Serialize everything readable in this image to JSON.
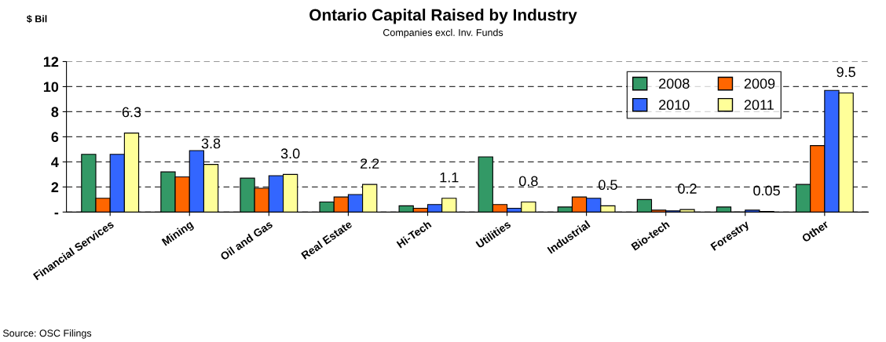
{
  "chart_data": {
    "type": "bar",
    "title": "Ontario Capital Raised by Industry",
    "subtitle": "Companies excl. Inv. Funds",
    "ylabel": "$ Bil",
    "categories": [
      "Financial Services",
      "Mining",
      "Oil and Gas",
      "Real Estate",
      "Hi-Tech",
      "Utilities",
      "Industrial",
      "Bio-tech",
      "Forestry",
      "Other"
    ],
    "series": [
      {
        "name": "2008",
        "color": "#339966",
        "values": [
          4.6,
          3.2,
          2.7,
          0.8,
          0.5,
          4.4,
          0.4,
          1.0,
          0.4,
          2.2
        ]
      },
      {
        "name": "2009",
        "color": "#ff6600",
        "values": [
          1.1,
          2.8,
          1.9,
          1.2,
          0.3,
          0.6,
          1.2,
          0.15,
          0.0,
          5.3
        ]
      },
      {
        "name": "2010",
        "color": "#3366ff",
        "values": [
          4.6,
          4.9,
          2.9,
          1.4,
          0.6,
          0.3,
          1.1,
          0.1,
          0.15,
          9.7
        ]
      },
      {
        "name": "2011",
        "color": "#ffff99",
        "values": [
          6.3,
          3.8,
          3.0,
          2.2,
          1.1,
          0.8,
          0.5,
          0.2,
          0.05,
          9.5
        ],
        "value_labels": [
          "6.3",
          "3.8",
          "3.0",
          "2.2",
          "1.1",
          "0.8",
          "0.5",
          "0.2",
          "0.05",
          "9.5"
        ]
      }
    ],
    "ylim": [
      0,
      12
    ],
    "yticks": [
      {
        "value": 0,
        "label": "-"
      },
      2,
      4,
      6,
      8,
      10,
      12
    ],
    "grid": "y",
    "legend": "top right",
    "annotations": [
      "Source: OSC Filings"
    ]
  }
}
